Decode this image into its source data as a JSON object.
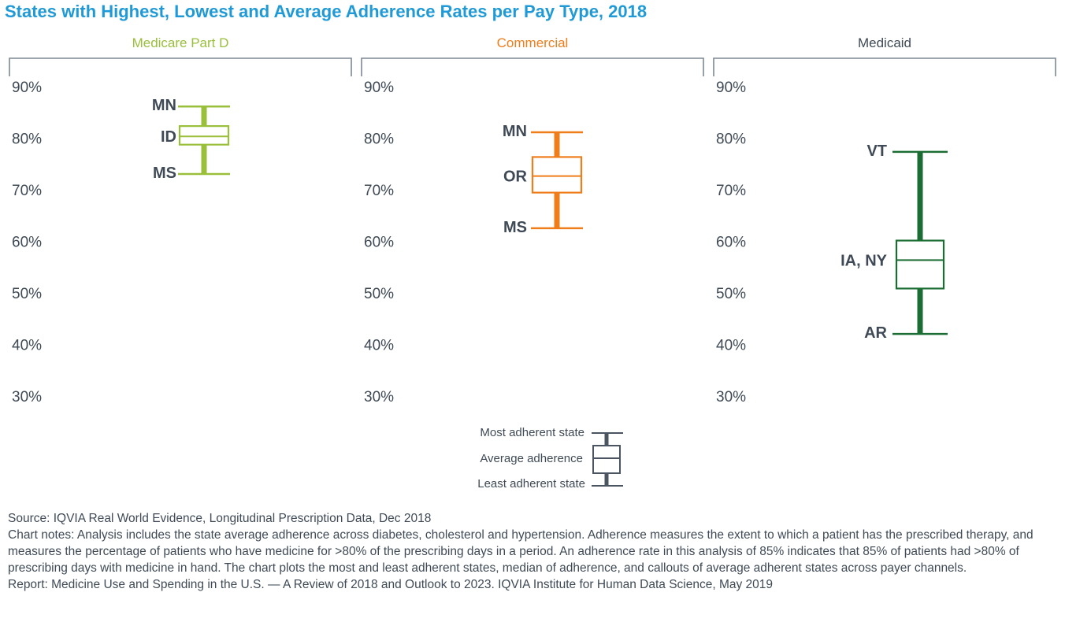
{
  "title": "States with Highest, Lowest and Average Adherence Rates per Pay Type, 2018",
  "chart_data": [
    {
      "type": "boxplot",
      "panel": "Medicare Part D",
      "color": "#99bf3b",
      "y_ticks": [
        "90%",
        "80%",
        "70%",
        "60%",
        "50%",
        "40%",
        "30%"
      ],
      "ylim": [
        30,
        90
      ],
      "max": 86.3,
      "q3": 82.5,
      "median": 80.5,
      "q1": 78.9,
      "min": 73.2,
      "labels": {
        "max": "MN",
        "median": "ID",
        "min": "MS"
      }
    },
    {
      "type": "boxplot",
      "panel": "Commercial",
      "color": "#ee7d1a",
      "y_ticks": [
        "90%",
        "80%",
        "70%",
        "60%",
        "50%",
        "40%",
        "30%"
      ],
      "ylim": [
        30,
        90
      ],
      "max": 81.3,
      "q3": 76.5,
      "median": 72.8,
      "q1": 69.6,
      "min": 62.7,
      "labels": {
        "max": "MN",
        "median": "OR",
        "min": "MS"
      }
    },
    {
      "type": "boxplot",
      "panel": "Medicaid",
      "color": "#1c6d33",
      "title_color": "#3f4a56",
      "y_ticks": [
        "90%",
        "80%",
        "70%",
        "60%",
        "50%",
        "40%",
        "30%"
      ],
      "ylim": [
        30,
        90
      ],
      "max": 77.5,
      "q3": 60.3,
      "median": 56.5,
      "q1": 51.0,
      "min": 42.2,
      "labels": {
        "max": "VT",
        "median": "IA, NY",
        "min": "AR"
      }
    }
  ],
  "legend": {
    "most": "Most adherent state",
    "average": "Average adherence",
    "least": "Least adherent state",
    "color": "#4a5561"
  },
  "notes": {
    "source": "Source: IQVIA Real World Evidence, Longitudinal Prescription Data, Dec 2018",
    "chart_notes": "Chart notes: Analysis includes the state average adherence across diabetes, cholesterol and hypertension. Adherence measures the extent to which a patient has the prescribed therapy, and measures the percentage of patients who have medicine for >80% of the prescribing days in a period. An adherence rate in this analysis of 85% indicates that 85% of patients had >80% of prescribing days with medicine in hand. The chart plots the most and least adherent states, median of adherence, and callouts of average adherent states across payer channels.",
    "report": "Report: Medicine Use and Spending in the U.S. — A Review of 2018 and Outlook to 2023. IQVIA Institute for Human Data Science, May 2019"
  }
}
